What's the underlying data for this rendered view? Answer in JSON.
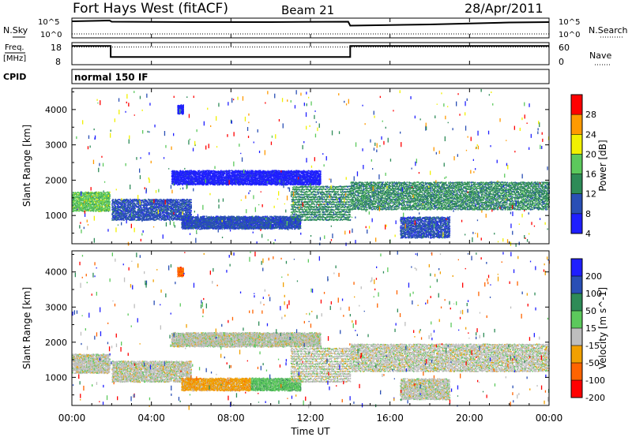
{
  "header": {
    "station": "Fort Hays West (fitACF)",
    "beam": "Beam 21",
    "date": "28/Apr/2011"
  },
  "side_labels": {
    "nsky": "N.Sky",
    "nsearch": "N.Search",
    "freq": "Freq.",
    "freq_unit": "[MHz]",
    "nave": "Nave",
    "cpid": "CPID"
  },
  "time_axis": {
    "label": "Time UT",
    "ticks": [
      "00:00",
      "04:00",
      "08:00",
      "12:00",
      "16:00",
      "20:00",
      "00:00"
    ],
    "range_hours": [
      0,
      24
    ]
  },
  "noise_panel": {
    "left_ticks": [
      "10^5",
      "10^0"
    ],
    "right_ticks": [
      "10^5",
      "10^0"
    ]
  },
  "freq_panel": {
    "left_ticks": [
      "18",
      "8"
    ],
    "right_ticks": [
      "60",
      "0"
    ]
  },
  "cpid_panel": {
    "mode_label": "normal 150 IF"
  },
  "chart_data": [
    {
      "type": "line",
      "title": "",
      "xlabel": "",
      "ylabel": "N.Sky",
      "series": [
        {
          "name": "N.Sky",
          "style": "solid",
          "x": [
            0,
            1.9,
            2.0,
            6,
            10,
            13.9,
            14.0,
            18,
            22,
            24
          ],
          "y": [
            0.84,
            0.88,
            0.82,
            0.8,
            0.8,
            0.82,
            0.62,
            0.68,
            0.78,
            0.8
          ]
        },
        {
          "name": "N.Search",
          "style": "dotted",
          "x": [
            0,
            24
          ],
          "y": [
            0.2,
            0.2
          ]
        }
      ]
    },
    {
      "type": "line",
      "ylabel": "Freq. [MHz]",
      "ylim": [
        8,
        18
      ],
      "y2label": "Nave",
      "y2lim": [
        0,
        60
      ],
      "series": [
        {
          "name": "Freq.",
          "style": "solid",
          "x": [
            0,
            1.95,
            1.95,
            14.0,
            14.0,
            24
          ],
          "y": [
            16.5,
            16.5,
            11.5,
            11.5,
            16.5,
            16.5
          ]
        },
        {
          "name": "Nave",
          "style": "dotted",
          "x": [
            0,
            24
          ],
          "y": [
            48,
            48
          ]
        }
      ]
    },
    {
      "type": "heatmap",
      "ylabel": "Slant Range [km]",
      "yticks": [
        1000,
        2000,
        3000,
        4000
      ],
      "ylim": [
        200,
        4600
      ],
      "colorbar": {
        "label": "Power [dB]",
        "ticks": [
          "4",
          "8",
          "12",
          "16",
          "20",
          "24",
          "28"
        ],
        "colors": [
          "#1f1fff",
          "#2a4fb5",
          "#2e8b57",
          "#5cc95c",
          "#f1f000",
          "#ff9a00",
          "#ff0000"
        ]
      },
      "echo_bands": [
        {
          "t": [
            0.0,
            1.9
          ],
          "range": [
            1150,
            1700
          ],
          "level": 3
        },
        {
          "t": [
            2.0,
            6.0
          ],
          "range": [
            900,
            1500
          ],
          "level": 1
        },
        {
          "t": [
            5.0,
            12.5
          ],
          "range": [
            1900,
            2300
          ],
          "level": 0
        },
        {
          "t": [
            5.5,
            11.5
          ],
          "range": [
            650,
            1000
          ],
          "level": 1
        },
        {
          "t": [
            11.0,
            14.0
          ],
          "range": [
            900,
            1900
          ],
          "level": 2
        },
        {
          "t": [
            14.0,
            24.0
          ],
          "range": [
            1200,
            2000
          ],
          "level": 2
        },
        {
          "t": [
            16.5,
            19.0
          ],
          "range": [
            400,
            1000
          ],
          "level": 1
        },
        {
          "t": [
            5.3,
            5.6
          ],
          "range": [
            3900,
            4150
          ],
          "level": 0
        }
      ]
    },
    {
      "type": "heatmap",
      "ylabel": "Slant Range [km]",
      "yticks": [
        1000,
        2000,
        3000,
        4000
      ],
      "ylim": [
        200,
        4600
      ],
      "colorbar": {
        "label": "Velocity [m s^-1]",
        "ticks": [
          "200",
          "100",
          "50",
          "15",
          "-15",
          "-50",
          "-100",
          "-200"
        ],
        "colors": [
          "#1f1fff",
          "#2a4fb5",
          "#2e8b57",
          "#5cc95c",
          "#bebebe",
          "#f1a000",
          "#ff6400",
          "#ff0000"
        ]
      },
      "echo_bands": [
        {
          "t": [
            0.0,
            1.9
          ],
          "range": [
            1150,
            1700
          ],
          "level": 4
        },
        {
          "t": [
            2.0,
            6.0
          ],
          "range": [
            900,
            1500
          ],
          "level": 4
        },
        {
          "t": [
            5.0,
            12.5
          ],
          "range": [
            1900,
            2300
          ],
          "level": 4
        },
        {
          "t": [
            5.5,
            9.0
          ],
          "range": [
            650,
            1000
          ],
          "level": 5
        },
        {
          "t": [
            9.0,
            11.5
          ],
          "range": [
            650,
            1000
          ],
          "level": 3
        },
        {
          "t": [
            11.0,
            14.0
          ],
          "range": [
            900,
            1900
          ],
          "level": 4
        },
        {
          "t": [
            14.0,
            24.0
          ],
          "range": [
            1200,
            2000
          ],
          "level": 4
        },
        {
          "t": [
            16.5,
            19.0
          ],
          "range": [
            400,
            1000
          ],
          "level": 4
        },
        {
          "t": [
            5.3,
            5.6
          ],
          "range": [
            3900,
            4150
          ],
          "level": 6
        }
      ]
    }
  ]
}
